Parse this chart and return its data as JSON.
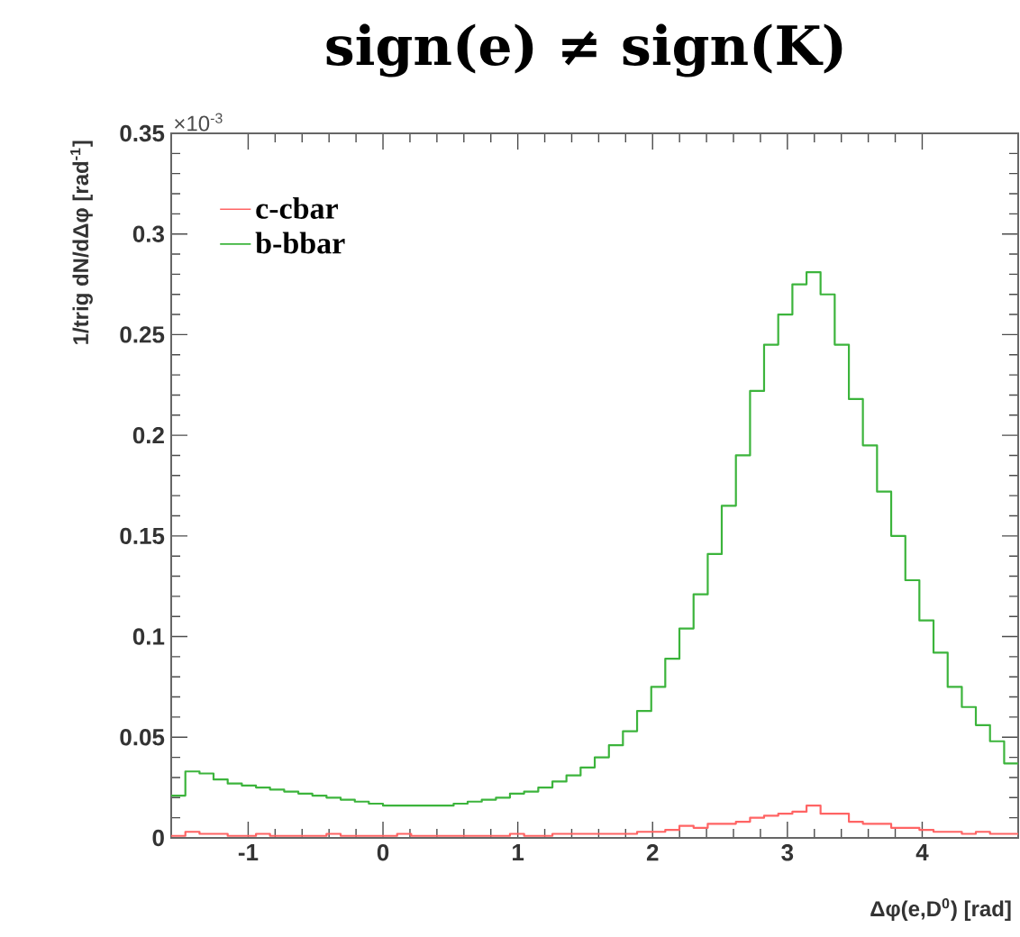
{
  "chart_data": {
    "type": "histogram",
    "title": "sign(e) ≠ sign(K)",
    "xlabel": "Δφ(e,D$^{0}$) [rad]",
    "ylabel": "1/trig dN/dΔφ [rad$^{-1}$]",
    "annotations": [
      "×10$^{-3}$"
    ],
    "bins": [
      -1.571,
      -1.466,
      -1.361,
      -1.257,
      -1.152,
      -1.047,
      -0.942,
      -0.838,
      -0.733,
      -0.628,
      -0.524,
      -0.419,
      -0.314,
      -0.209,
      -0.105,
      0,
      0.105,
      0.209,
      0.314,
      0.419,
      0.524,
      0.628,
      0.733,
      0.838,
      0.942,
      1.047,
      1.152,
      1.257,
      1.361,
      1.466,
      1.571,
      1.676,
      1.78,
      1.885,
      1.99,
      2.094,
      2.199,
      2.304,
      2.409,
      2.513,
      2.618,
      2.723,
      2.827,
      2.932,
      3.037,
      3.142,
      3.246,
      3.351,
      3.456,
      3.56,
      3.665,
      3.77,
      3.875,
      3.979,
      4.084,
      4.189,
      4.294,
      4.398,
      4.503,
      4.608,
      4.712
    ],
    "series": [
      {
        "name": "c-cbar",
        "color": "#ff6464",
        "values": [
          0.001,
          0.003,
          0.002,
          0.002,
          0.001,
          0.001,
          0.002,
          0.001,
          0.001,
          0.001,
          0.001,
          0.002,
          0.001,
          0.001,
          0.001,
          0.001,
          0.002,
          0.001,
          0.001,
          0.001,
          0.001,
          0.001,
          0.001,
          0.001,
          0.002,
          0.001,
          0.001,
          0.002,
          0.002,
          0.002,
          0.002,
          0.002,
          0.002,
          0.003,
          0.003,
          0.004,
          0.006,
          0.005,
          0.007,
          0.007,
          0.008,
          0.01,
          0.011,
          0.012,
          0.013,
          0.016,
          0.012,
          0.012,
          0.008,
          0.007,
          0.007,
          0.005,
          0.005,
          0.004,
          0.003,
          0.003,
          0.002,
          0.003,
          0.002,
          0.002
        ]
      },
      {
        "name": "b-bbar",
        "color": "#3cb43c",
        "values": [
          0.021,
          0.033,
          0.032,
          0.029,
          0.027,
          0.026,
          0.025,
          0.024,
          0.023,
          0.022,
          0.021,
          0.02,
          0.019,
          0.018,
          0.017,
          0.016,
          0.016,
          0.016,
          0.016,
          0.016,
          0.017,
          0.018,
          0.019,
          0.02,
          0.022,
          0.023,
          0.025,
          0.028,
          0.031,
          0.035,
          0.04,
          0.046,
          0.053,
          0.063,
          0.075,
          0.089,
          0.104,
          0.121,
          0.141,
          0.165,
          0.19,
          0.222,
          0.245,
          0.26,
          0.275,
          0.281,
          0.27,
          0.245,
          0.218,
          0.195,
          0.172,
          0.15,
          0.128,
          0.108,
          0.092,
          0.075,
          0.065,
          0.056,
          0.048,
          0.037
        ]
      }
    ],
    "xlim": [
      -1.571,
      4.712
    ],
    "ylim": [
      0,
      0.35
    ],
    "xticks": [
      -1,
      0,
      1,
      2,
      3,
      4
    ],
    "yticks": [
      0,
      0.05,
      0.1,
      0.15,
      0.2,
      0.25,
      0.3,
      0.35
    ],
    "legend": "top left"
  }
}
